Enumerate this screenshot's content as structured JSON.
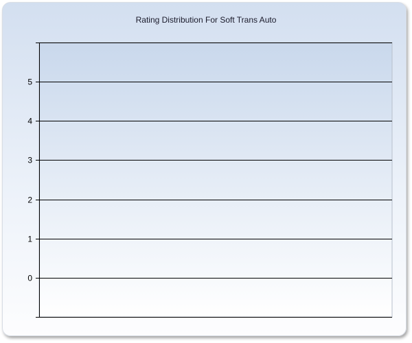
{
  "chart_data": {
    "type": "bar",
    "title": "Rating Distribution For Soft Trans Auto",
    "xlabel": "",
    "ylabel": "",
    "categories": [],
    "values": [],
    "ylim": [
      -1,
      6
    ],
    "yticks": [
      0,
      1,
      2,
      3,
      4,
      5
    ],
    "grid": true,
    "colors": {
      "background_top": "#d3dff0",
      "plot_top": "#c9d8ec",
      "bottom": "#ffffff"
    }
  }
}
